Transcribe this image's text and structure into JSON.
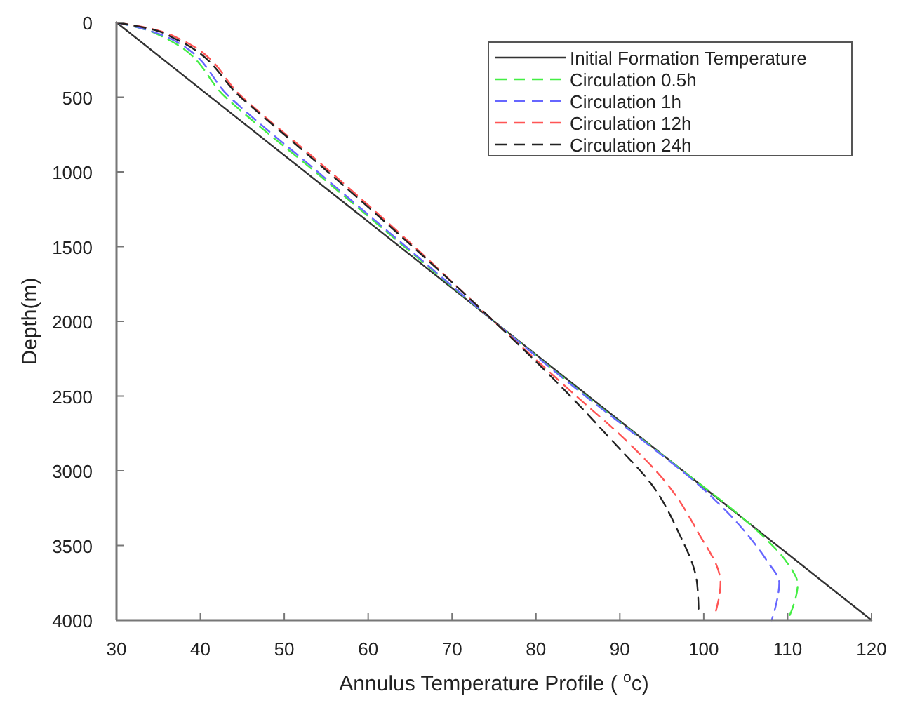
{
  "chart_data": {
    "type": "line",
    "xlabel": "Annulus Temperature Profile ( $^{o}$c)",
    "ylabel": "Depth(m)",
    "xlim": [
      30,
      120
    ],
    "xticks": [
      30,
      40,
      50,
      60,
      70,
      80,
      90,
      100,
      110,
      120
    ],
    "ylim": [
      4000,
      0
    ],
    "yticks": [
      0,
      500,
      1000,
      1500,
      2000,
      2500,
      3000,
      3500,
      4000
    ],
    "legend": "top right",
    "grid": false,
    "series": [
      {
        "name": "Initial Formation Temperature",
        "color": "#333333",
        "line_style": "solid",
        "x": [
          30,
          120
        ],
        "values": [
          0,
          4000
        ]
      },
      {
        "name": "Circulation 0.5h",
        "color": "#44ee44",
        "line_style": "dashed",
        "x": [
          30,
          33,
          36,
          43,
          53.7,
          64.3,
          75,
          86,
          97.5,
          104.3,
          107.3,
          110,
          111.2,
          110.7,
          110
        ],
        "values": [
          0,
          40,
          110,
          500,
          1000,
          1500,
          2000,
          2500,
          3000,
          3300,
          3450,
          3620,
          3760,
          3900,
          4000
        ]
      },
      {
        "name": "Circulation 1h",
        "color": "#6666ff",
        "line_style": "dashed",
        "x": [
          30,
          33,
          36.5,
          43.5,
          54,
          64.5,
          75,
          85.9,
          92.8,
          99.5,
          104.8,
          107.5,
          109,
          108.6,
          108.1
        ],
        "values": [
          0,
          40,
          110,
          500,
          1000,
          1500,
          2000,
          2500,
          2800,
          3100,
          3400,
          3600,
          3750,
          3900,
          4000
        ]
      },
      {
        "name": "Circulation 12h",
        "color": "#ff5555",
        "line_style": "dashed",
        "x": [
          30,
          34,
          37.5,
          45,
          55.5,
          65.5,
          75,
          84.8,
          90.8,
          95.8,
          99.2,
          102,
          101.4
        ],
        "values": [
          0,
          40,
          110,
          500,
          1000,
          1500,
          2000,
          2500,
          2800,
          3100,
          3400,
          3750,
          3950
        ]
      },
      {
        "name": "Circulation 24h",
        "color": "#222222",
        "line_style": "dashed",
        "x": [
          30,
          34.5,
          37,
          44.8,
          55.2,
          65.3,
          75,
          84.1,
          89.1,
          93.9,
          96.9,
          99.2,
          99.4
        ],
        "values": [
          0,
          50,
          110,
          500,
          1000,
          1500,
          2000,
          2500,
          2800,
          3100,
          3400,
          3750,
          3950
        ]
      }
    ]
  }
}
